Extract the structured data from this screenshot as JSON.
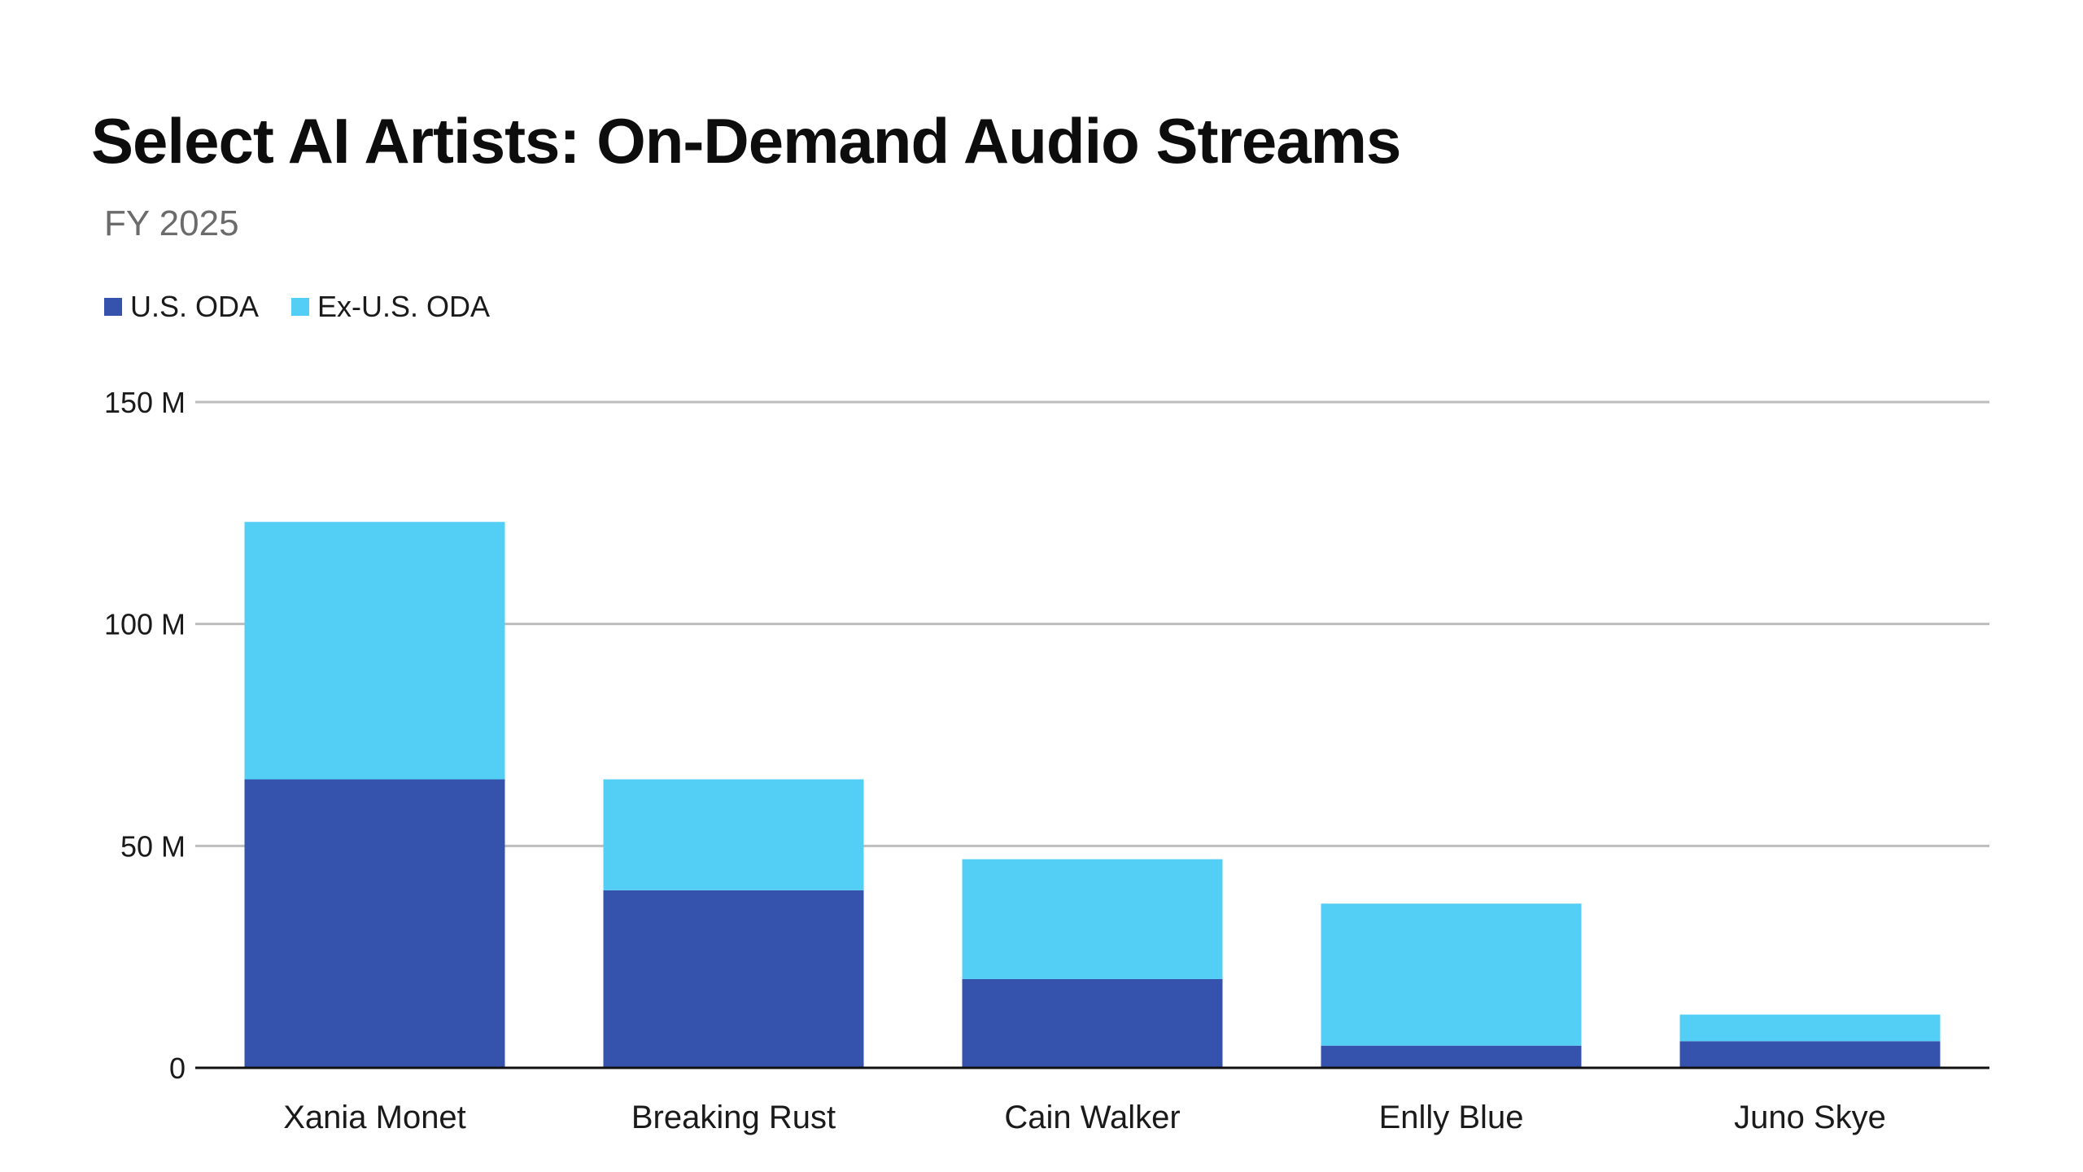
{
  "chart_data": {
    "type": "bar",
    "stacked": true,
    "title": "Select AI Artists: On-Demand Audio Streams",
    "subtitle": "FY 2025",
    "categories": [
      "Xania Monet",
      "Breaking Rust",
      "Cain Walker",
      "Enlly Blue",
      "Juno Skye"
    ],
    "series": [
      {
        "name": "U.S. ODA",
        "color": "#3553ad",
        "values": [
          65,
          40,
          20,
          5,
          6
        ]
      },
      {
        "name": "Ex-U.S. ODA",
        "color": "#53cff5",
        "values": [
          58,
          25,
          27,
          32,
          6
        ]
      }
    ],
    "yticks": [
      {
        "value": 0,
        "label": "0"
      },
      {
        "value": 50,
        "label": "50 M"
      },
      {
        "value": 100,
        "label": "100 M"
      },
      {
        "value": 150,
        "label": "150 M"
      }
    ],
    "ylim": [
      0,
      150
    ],
    "grid": true,
    "legend_position": "top-left"
  }
}
